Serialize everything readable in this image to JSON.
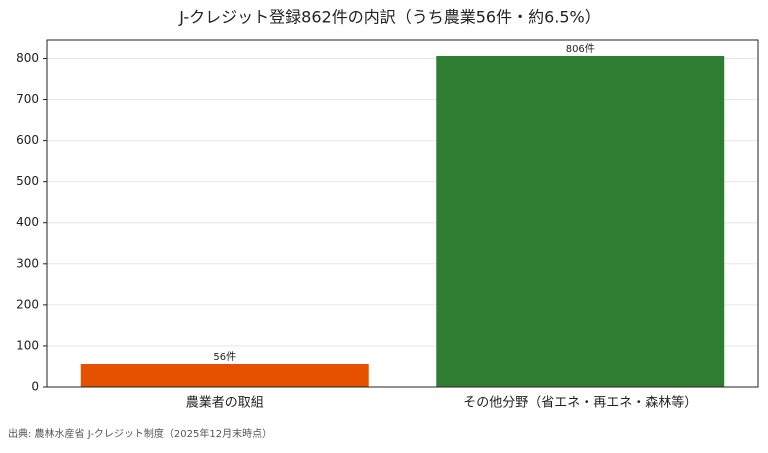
{
  "chart_data": {
    "type": "bar",
    "title": "J-クレジット登録862件の内訳（うち農業56件・約6.5%）",
    "categories": [
      "農業者の取組",
      "その他分野（省エネ・再エネ・森林等）"
    ],
    "values": [
      56,
      806
    ],
    "value_labels": [
      "56件",
      "806件"
    ],
    "colors": [
      "#e65100",
      "#2e7d32"
    ],
    "ylim": [
      0,
      845
    ],
    "yticks": [
      0,
      100,
      200,
      300,
      400,
      500,
      600,
      700,
      800
    ],
    "grid": true,
    "source": "出典: 農林水産省 J-クレジット制度（2025年12月末時点）"
  }
}
